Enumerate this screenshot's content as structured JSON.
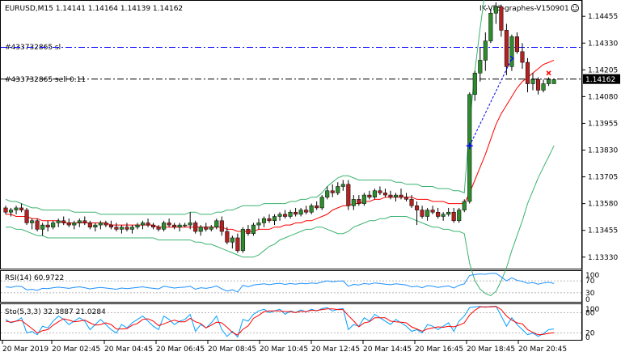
{
  "header": {
    "symbol_line": "EURUSD,M15  1.14141 1.14164 1.14139 1.14162",
    "ea_label": "IK-VPS-graphes-V150901",
    "ea_icon": "smiley-icon"
  },
  "order_lines": {
    "sl_label": "#433732865 sl",
    "sl_price": 1.1431,
    "sl_color": "#0000ff",
    "sell_label": "#433732865 sell 0.11",
    "sell_price": 1.14162,
    "sell_color": "#000000"
  },
  "price_tag": "1.14162",
  "rsi_label": "RSI(14) 60.9722",
  "sto_label": "Sto(5,3,3) 32.3887 21.0284",
  "colors": {
    "bull": "#2e8b2e",
    "bear": "#b22222",
    "ma": "#ff0000",
    "bands": "#3cb371",
    "rsi": "#1e90ff",
    "sto_main": "#00a0ff",
    "sto_signal": "#ff0000"
  },
  "chart_data": {
    "type": "candlestick",
    "y_ticks": [
      "1.14455",
      "1.14330",
      "1.14205",
      "1.14080",
      "1.13955",
      "1.13830",
      "1.13705",
      "1.13580",
      "1.13455",
      "1.13330"
    ],
    "ylim": [
      1.1328,
      1.1452
    ],
    "rsi_ticks": [
      "100",
      "70",
      "30",
      "0"
    ],
    "sto_ticks": [
      "100",
      "80",
      "20",
      "0"
    ],
    "x_ticks": [
      "20 Mar 2019",
      "20 Mar 02:45",
      "20 Mar 04:45",
      "20 Mar 06:45",
      "20 Mar 08:45",
      "20 Mar 10:45",
      "20 Mar 12:45",
      "20 Mar 14:45",
      "20 Mar 16:45",
      "20 Mar 18:45",
      "20 Mar 20:45"
    ],
    "candles": [
      [
        1.1356,
        1.1357,
        1.1353,
        1.1354
      ],
      [
        1.1354,
        1.1356,
        1.1352,
        1.1355
      ],
      [
        1.1355,
        1.1357,
        1.1353,
        1.1356
      ],
      [
        1.1356,
        1.1358,
        1.1354,
        1.1355
      ],
      [
        1.1355,
        1.1356,
        1.1348,
        1.1349
      ],
      [
        1.1349,
        1.1351,
        1.1346,
        1.135
      ],
      [
        1.135,
        1.1351,
        1.1345,
        1.1346
      ],
      [
        1.1346,
        1.1349,
        1.1343,
        1.1348
      ],
      [
        1.1348,
        1.135,
        1.1345,
        1.1347
      ],
      [
        1.1347,
        1.135,
        1.1346,
        1.1349
      ],
      [
        1.1349,
        1.1351,
        1.1347,
        1.135
      ],
      [
        1.135,
        1.1352,
        1.1348,
        1.1349
      ],
      [
        1.1349,
        1.1351,
        1.1347,
        1.1348
      ],
      [
        1.1348,
        1.135,
        1.1346,
        1.1349
      ],
      [
        1.1349,
        1.1351,
        1.1347,
        1.135
      ],
      [
        1.135,
        1.1352,
        1.1348,
        1.1349
      ],
      [
        1.1349,
        1.135,
        1.1346,
        1.1347
      ],
      [
        1.1347,
        1.1349,
        1.1345,
        1.1348
      ],
      [
        1.1348,
        1.135,
        1.1346,
        1.1349
      ],
      [
        1.1349,
        1.135,
        1.1347,
        1.1348
      ],
      [
        1.1348,
        1.135,
        1.1346,
        1.1347
      ],
      [
        1.1347,
        1.1349,
        1.1345,
        1.1346
      ],
      [
        1.1346,
        1.1348,
        1.1344,
        1.1347
      ],
      [
        1.1347,
        1.1349,
        1.1345,
        1.1346
      ],
      [
        1.1346,
        1.1348,
        1.1344,
        1.1347
      ],
      [
        1.1347,
        1.1349,
        1.1346,
        1.1348
      ],
      [
        1.1348,
        1.135,
        1.1346,
        1.1349
      ],
      [
        1.1349,
        1.1351,
        1.1347,
        1.1348
      ],
      [
        1.1348,
        1.1349,
        1.1346,
        1.1347
      ],
      [
        1.1347,
        1.1348,
        1.1345,
        1.1346
      ],
      [
        1.1346,
        1.135,
        1.1345,
        1.1349
      ],
      [
        1.1349,
        1.1351,
        1.1347,
        1.1348
      ],
      [
        1.1348,
        1.1349,
        1.1346,
        1.1347
      ],
      [
        1.1347,
        1.1349,
        1.1345,
        1.1348
      ],
      [
        1.1348,
        1.1349,
        1.1347,
        1.1348
      ],
      [
        1.1348,
        1.1354,
        1.1346,
        1.1349
      ],
      [
        1.1349,
        1.135,
        1.1344,
        1.1345
      ],
      [
        1.1345,
        1.1348,
        1.1343,
        1.1347
      ],
      [
        1.1347,
        1.1349,
        1.1345,
        1.1346
      ],
      [
        1.1346,
        1.1348,
        1.1345,
        1.1347
      ],
      [
        1.1347,
        1.1351,
        1.1346,
        1.135
      ],
      [
        1.135,
        1.1352,
        1.1343,
        1.1345
      ],
      [
        1.1345,
        1.1347,
        1.1339,
        1.134
      ],
      [
        1.134,
        1.1343,
        1.1337,
        1.1342
      ],
      [
        1.1342,
        1.1344,
        1.1335,
        1.1336
      ],
      [
        1.1336,
        1.1347,
        1.1335,
        1.1346
      ],
      [
        1.1346,
        1.1348,
        1.1343,
        1.1344
      ],
      [
        1.1344,
        1.1349,
        1.1343,
        1.1348
      ],
      [
        1.1348,
        1.1351,
        1.1346,
        1.1349
      ],
      [
        1.1349,
        1.1352,
        1.1347,
        1.1351
      ],
      [
        1.1351,
        1.1353,
        1.1349,
        1.135
      ],
      [
        1.135,
        1.1353,
        1.1348,
        1.1352
      ],
      [
        1.1352,
        1.1354,
        1.135,
        1.1353
      ],
      [
        1.1353,
        1.1355,
        1.1351,
        1.1352
      ],
      [
        1.1352,
        1.1355,
        1.1351,
        1.1354
      ],
      [
        1.1354,
        1.1356,
        1.1352,
        1.1353
      ],
      [
        1.1353,
        1.1356,
        1.1352,
        1.1355
      ],
      [
        1.1355,
        1.1357,
        1.1353,
        1.1354
      ],
      [
        1.1354,
        1.1358,
        1.1353,
        1.1357
      ],
      [
        1.1357,
        1.1359,
        1.1355,
        1.1356
      ],
      [
        1.1356,
        1.1362,
        1.1355,
        1.1361
      ],
      [
        1.1361,
        1.1366,
        1.136,
        1.1364
      ],
      [
        1.1364,
        1.1367,
        1.1361,
        1.1363
      ],
      [
        1.1363,
        1.1368,
        1.1362,
        1.1366
      ],
      [
        1.1366,
        1.1369,
        1.1364,
        1.1367
      ],
      [
        1.1367,
        1.1369,
        1.1355,
        1.1357
      ],
      [
        1.1357,
        1.1362,
        1.1355,
        1.136
      ],
      [
        1.136,
        1.1362,
        1.1357,
        1.1358
      ],
      [
        1.1358,
        1.1363,
        1.1357,
        1.1362
      ],
      [
        1.1362,
        1.1364,
        1.136,
        1.1361
      ],
      [
        1.1361,
        1.1365,
        1.136,
        1.1364
      ],
      [
        1.1364,
        1.1366,
        1.1362,
        1.1363
      ],
      [
        1.1363,
        1.1365,
        1.1361,
        1.1362
      ],
      [
        1.1362,
        1.1364,
        1.136,
        1.1361
      ],
      [
        1.1361,
        1.1363,
        1.1359,
        1.1362
      ],
      [
        1.1362,
        1.1365,
        1.136,
        1.1361
      ],
      [
        1.1361,
        1.1363,
        1.1359,
        1.136
      ],
      [
        1.136,
        1.1362,
        1.1356,
        1.1357
      ],
      [
        1.1357,
        1.1359,
        1.1348,
        1.1355
      ],
      [
        1.1355,
        1.1357,
        1.1351,
        1.1352
      ],
      [
        1.1352,
        1.1356,
        1.135,
        1.1355
      ],
      [
        1.1355,
        1.1357,
        1.1353,
        1.1354
      ],
      [
        1.1354,
        1.1356,
        1.1351,
        1.1352
      ],
      [
        1.1352,
        1.1354,
        1.135,
        1.1353
      ],
      [
        1.1353,
        1.1356,
        1.1352,
        1.1354
      ],
      [
        1.1354,
        1.1356,
        1.1349,
        1.135
      ],
      [
        1.135,
        1.1356,
        1.1349,
        1.1355
      ],
      [
        1.1355,
        1.136,
        1.1354,
        1.1359
      ],
      [
        1.1359,
        1.141,
        1.1358,
        1.1409
      ],
      [
        1.1409,
        1.142,
        1.1406,
        1.1419
      ],
      [
        1.1419,
        1.1431,
        1.1415,
        1.1425
      ],
      [
        1.1425,
        1.1438,
        1.142,
        1.1434
      ],
      [
        1.1434,
        1.1449,
        1.1433,
        1.1447
      ],
      [
        1.1447,
        1.1452,
        1.1442,
        1.145
      ],
      [
        1.145,
        1.1451,
        1.1436,
        1.1439
      ],
      [
        1.1439,
        1.1442,
        1.1418,
        1.1422
      ],
      [
        1.1422,
        1.1437,
        1.142,
        1.1436
      ],
      [
        1.1436,
        1.1438,
        1.1428,
        1.1429
      ],
      [
        1.1429,
        1.1433,
        1.1421,
        1.1424
      ],
      [
        1.1424,
        1.1426,
        1.141,
        1.1414
      ],
      [
        1.1414,
        1.1419,
        1.1411,
        1.1416
      ],
      [
        1.1416,
        1.1417,
        1.1409,
        1.1411
      ],
      [
        1.1411,
        1.1416,
        1.141,
        1.1414
      ],
      [
        1.1414,
        1.1417,
        1.1413,
        1.1416
      ],
      [
        1.1414,
        1.1416,
        1.1414,
        1.1416
      ]
    ],
    "bands_upper": [
      1.136,
      1.1359,
      1.1359,
      1.1358,
      1.1357,
      1.1356,
      1.1356,
      1.1355,
      1.1355,
      1.1355,
      1.1355,
      1.1355,
      1.1355,
      1.1354,
      1.1354,
      1.1354,
      1.1354,
      1.1354,
      1.1353,
      1.1353,
      1.1353,
      1.1353,
      1.1353,
      1.1353,
      1.1353,
      1.1353,
      1.1353,
      1.1353,
      1.1353,
      1.1353,
      1.1353,
      1.1353,
      1.1353,
      1.1353,
      1.1353,
      1.1354,
      1.1354,
      1.1353,
      1.1353,
      1.1353,
      1.1354,
      1.1354,
      1.1355,
      1.1355,
      1.1356,
      1.1357,
      1.1357,
      1.1357,
      1.1357,
      1.1358,
      1.1358,
      1.1358,
      1.1358,
      1.1358,
      1.1359,
      1.1359,
      1.136,
      1.136,
      1.1361,
      1.1361,
      1.1363,
      1.1366,
      1.1368,
      1.137,
      1.1371,
      1.1371,
      1.137,
      1.1369,
      1.1369,
      1.1369,
      1.1369,
      1.1369,
      1.1369,
      1.1369,
      1.1368,
      1.1368,
      1.1367,
      1.1367,
      1.1367,
      1.1366,
      1.1366,
      1.1366,
      1.1365,
      1.1365,
      1.1365,
      1.1364,
      1.1364,
      1.1363,
      1.1395,
      1.142,
      1.144,
      1.1458,
      1.1475,
      1.149,
      1.1498,
      1.1502,
      1.1506,
      1.1506,
      1.1506,
      1.1505,
      1.1503,
      1.15,
      1.1497,
      1.1494,
      1.1491
    ],
    "bands_lower": [
      1.1347,
      1.1347,
      1.1346,
      1.1346,
      1.1345,
      1.1344,
      1.1343,
      1.1343,
      1.1342,
      1.1342,
      1.1342,
      1.1342,
      1.1342,
      1.1342,
      1.1342,
      1.1342,
      1.1342,
      1.1342,
      1.1342,
      1.1342,
      1.1342,
      1.1342,
      1.1342,
      1.1342,
      1.1342,
      1.1342,
      1.1342,
      1.1342,
      1.1342,
      1.1341,
      1.1341,
      1.1341,
      1.1341,
      1.1341,
      1.1341,
      1.1341,
      1.134,
      1.134,
      1.1339,
      1.1339,
      1.1338,
      1.1337,
      1.1336,
      1.1335,
      1.1334,
      1.1333,
      1.1333,
      1.1333,
      1.1334,
      1.1336,
      1.1338,
      1.1339,
      1.1341,
      1.1342,
      1.1343,
      1.1344,
      1.1345,
      1.1346,
      1.1346,
      1.1347,
      1.1347,
      1.1346,
      1.1345,
      1.1344,
      1.1344,
      1.1345,
      1.1347,
      1.1348,
      1.1349,
      1.135,
      1.135,
      1.1351,
      1.1351,
      1.1352,
      1.1352,
      1.1352,
      1.1352,
      1.1351,
      1.135,
      1.1349,
      1.1348,
      1.1347,
      1.1347,
      1.1346,
      1.1346,
      1.1345,
      1.1345,
      1.1344,
      1.133,
      1.1322,
      1.1318,
      1.1316,
      1.1315,
      1.1317,
      1.1322,
      1.1328,
      1.1336,
      1.1343,
      1.135,
      1.1358,
      1.1364,
      1.137,
      1.1375,
      1.138,
      1.1385
    ],
    "ma": [
      1.1353,
      1.1353,
      1.1352,
      1.1352,
      1.1352,
      1.1351,
      1.1351,
      1.135,
      1.135,
      1.135,
      1.135,
      1.1349,
      1.1349,
      1.1349,
      1.1349,
      1.1349,
      1.1349,
      1.1349,
      1.1349,
      1.1349,
      1.1348,
      1.1348,
      1.1348,
      1.1348,
      1.1348,
      1.1348,
      1.1348,
      1.1348,
      1.1348,
      1.1347,
      1.1347,
      1.1347,
      1.1347,
      1.1347,
      1.1347,
      1.1347,
      1.1347,
      1.1347,
      1.1347,
      1.1347,
      1.1347,
      1.1347,
      1.1346,
      1.1346,
      1.1345,
      1.1345,
      1.1345,
      1.1345,
      1.1346,
      1.1346,
      1.1346,
      1.1347,
      1.1347,
      1.1348,
      1.1348,
      1.1349,
      1.1349,
      1.135,
      1.135,
      1.1351,
      1.1352,
      1.1353,
      1.1355,
      1.1356,
      1.1357,
      1.1357,
      1.1358,
      1.1358,
      1.1359,
      1.1359,
      1.136,
      1.136,
      1.1361,
      1.1361,
      1.1361,
      1.1361,
      1.1361,
      1.1361,
      1.136,
      1.136,
      1.136,
      1.1359,
      1.1359,
      1.1359,
      1.1358,
      1.1358,
      1.1358,
      1.1358,
      1.1363,
      1.1369,
      1.1375,
      1.1381,
      1.1388,
      1.1395,
      1.14,
      1.1404,
      1.1408,
      1.1412,
      1.1415,
      1.1417,
      1.1419,
      1.1421,
      1.1423,
      1.1424,
      1.1425
    ],
    "rsi": [
      50,
      48,
      52,
      51,
      40,
      42,
      38,
      45,
      44,
      47,
      49,
      47,
      45,
      48,
      50,
      47,
      43,
      46,
      48,
      46,
      44,
      42,
      46,
      44,
      46,
      48,
      50,
      47,
      45,
      43,
      52,
      49,
      46,
      48,
      49,
      52,
      42,
      47,
      45,
      48,
      53,
      43,
      36,
      40,
      33,
      55,
      50,
      56,
      58,
      60,
      57,
      60,
      62,
      58,
      61,
      59,
      62,
      60,
      63,
      61,
      66,
      70,
      67,
      69,
      70,
      52,
      58,
      56,
      61,
      59,
      63,
      61,
      59,
      57,
      60,
      58,
      56,
      50,
      52,
      47,
      54,
      52,
      48,
      51,
      53,
      46,
      55,
      60,
      88,
      91,
      93,
      92,
      95,
      95,
      83,
      70,
      80,
      72,
      68,
      62,
      64,
      59,
      63,
      65,
      61
    ],
    "sto_main": [
      60,
      50,
      55,
      65,
      20,
      25,
      15,
      40,
      35,
      55,
      70,
      60,
      45,
      55,
      65,
      55,
      30,
      45,
      60,
      45,
      30,
      20,
      45,
      35,
      50,
      60,
      70,
      55,
      40,
      30,
      70,
      60,
      45,
      55,
      60,
      75,
      25,
      45,
      35,
      50,
      70,
      30,
      10,
      25,
      8,
      60,
      55,
      75,
      85,
      90,
      80,
      85,
      90,
      75,
      85,
      80,
      88,
      82,
      90,
      85,
      92,
      95,
      85,
      90,
      92,
      30,
      45,
      40,
      65,
      55,
      75,
      65,
      55,
      45,
      60,
      50,
      40,
      25,
      30,
      20,
      45,
      40,
      30,
      40,
      50,
      25,
      55,
      70,
      95,
      97,
      98,
      96,
      98,
      99,
      70,
      40,
      65,
      45,
      30,
      15,
      20,
      10,
      18,
      30,
      32
    ],
    "sto_signal": [
      55,
      52,
      55,
      57,
      45,
      33,
      20,
      27,
      30,
      43,
      53,
      62,
      58,
      53,
      55,
      58,
      50,
      43,
      45,
      50,
      45,
      32,
      32,
      33,
      43,
      48,
      60,
      62,
      55,
      42,
      47,
      53,
      58,
      53,
      53,
      63,
      53,
      48,
      35,
      43,
      52,
      50,
      37,
      22,
      14,
      31,
      41,
      63,
      72,
      83,
      85,
      85,
      85,
      83,
      83,
      80,
      84,
      83,
      87,
      86,
      89,
      91,
      91,
      89,
      89,
      71,
      56,
      38,
      50,
      53,
      65,
      65,
      65,
      55,
      53,
      52,
      50,
      38,
      32,
      25,
      32,
      35,
      38,
      37,
      40,
      38,
      43,
      50,
      73,
      87,
      97,
      97,
      97,
      98,
      89,
      70,
      58,
      50,
      47,
      30,
      22,
      15,
      16,
      19,
      21
    ]
  }
}
